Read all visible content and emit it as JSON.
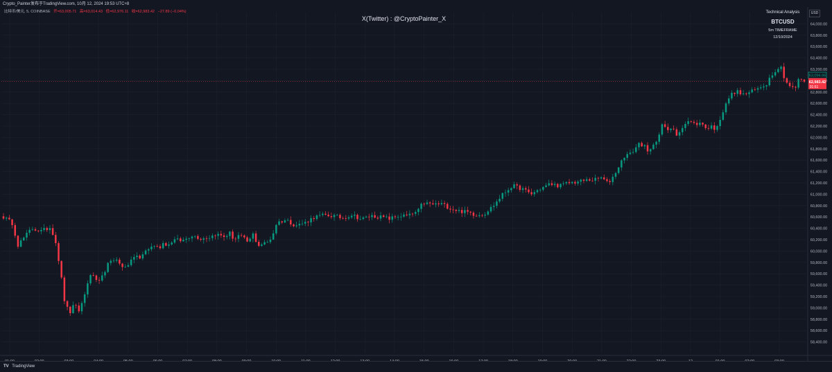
{
  "topbar": {
    "text": "Crypto_Painter发布于TradingView.com, 10月 12, 2024 19:53 UTC+8"
  },
  "legend": {
    "symbol": "比特币/美元, 5, COINBASE",
    "open": "开=63,005.71",
    "high": "高=63,014.43",
    "low": "低=62,976.11",
    "close": "收=62,983.42",
    "change": "−27.89 (−0.04%)"
  },
  "watermark": "X(Twitter) : @CryptoPainter_X",
  "info": {
    "line1": "Technical Analysis",
    "line2": "BTCUSD",
    "line3": "5m TIMEFRAME",
    "line4": "12/10/2024"
  },
  "currency": "USD",
  "footer": {
    "logo": "TV",
    "brand": "TradingView"
  },
  "colors": {
    "up": "#089981",
    "down": "#f23645",
    "background": "#131722",
    "grid": "#1e222d",
    "text": "#b2b5be"
  },
  "chart_data": {
    "type": "candlestick",
    "title": "",
    "symbol": "BTCUSD",
    "timeframe": "5m",
    "ylim": [
      58200,
      64200
    ],
    "yticks": [
      "58,400.00",
      "58,600.00",
      "58,800.00",
      "59,000.00",
      "59,200.00",
      "59,400.00",
      "59,600.00",
      "59,800.00",
      "60,000.00",
      "60,200.00",
      "60,400.00",
      "60,600.00",
      "60,800.00",
      "61,000.00",
      "61,200.00",
      "61,400.00",
      "61,600.00",
      "61,800.00",
      "62,000.00",
      "62,200.00",
      "62,400.00",
      "62,600.00",
      "62,800.00",
      "63,000.00",
      "63,200.00",
      "63,400.00",
      "63,600.00",
      "63,800.00",
      "64,000.00"
    ],
    "xticks": [
      "01:00",
      "02:00",
      "03:00",
      "04:00",
      "05:00",
      "06:00",
      "07:00",
      "08:00",
      "09:00",
      "10:00",
      "11:00",
      "12:00",
      "13:00",
      "14:00",
      "15:00",
      "16:00",
      "17:00",
      "18:00",
      "19:00",
      "20:00",
      "21:00",
      "22:00",
      "23:00",
      "12",
      "01:00",
      "02:00",
      "03:00"
    ],
    "price_line": {
      "label": "62,983.42",
      "sub": "01:51",
      "value": 62983.42
    },
    "open_line": {
      "label": "63,094.66",
      "value": 63094.66
    },
    "path": [
      [
        0,
        60600
      ],
      [
        2,
        60480
      ],
      [
        3,
        60100
      ],
      [
        6,
        60400
      ],
      [
        8,
        60350
      ],
      [
        10,
        60420
      ],
      [
        11,
        60200
      ],
      [
        12,
        59700
      ],
      [
        13,
        59100
      ],
      [
        14,
        58900
      ],
      [
        15,
        59050
      ],
      [
        16,
        58950
      ],
      [
        17,
        59150
      ],
      [
        18,
        59500
      ],
      [
        19,
        59600
      ],
      [
        20,
        59400
      ],
      [
        21,
        59550
      ],
      [
        22,
        59750
      ],
      [
        24,
        59880
      ],
      [
        25,
        59700
      ],
      [
        27,
        59800
      ],
      [
        28,
        59950
      ],
      [
        29,
        59850
      ],
      [
        30,
        60000
      ],
      [
        32,
        60100
      ],
      [
        33,
        60050
      ],
      [
        34,
        60150
      ],
      [
        35,
        60100
      ],
      [
        36,
        60200
      ],
      [
        38,
        60180
      ],
      [
        40,
        60280
      ],
      [
        42,
        60220
      ],
      [
        44,
        60250
      ],
      [
        45,
        60300
      ],
      [
        47,
        60250
      ],
      [
        48,
        60320
      ],
      [
        49,
        60200
      ],
      [
        50,
        60280
      ],
      [
        52,
        60150
      ],
      [
        53,
        60300
      ],
      [
        54,
        60100
      ],
      [
        56,
        60150
      ],
      [
        57,
        60250
      ],
      [
        58,
        60500
      ],
      [
        60,
        60550
      ],
      [
        62,
        60450
      ],
      [
        64,
        60500
      ],
      [
        66,
        60600
      ],
      [
        68,
        60630
      ],
      [
        70,
        60620
      ],
      [
        72,
        60580
      ],
      [
        74,
        60640
      ],
      [
        76,
        60560
      ],
      [
        78,
        60620
      ],
      [
        80,
        60600
      ],
      [
        82,
        60570
      ],
      [
        84,
        60620
      ],
      [
        86,
        60620
      ],
      [
        88,
        60700
      ],
      [
        89,
        60850
      ],
      [
        91,
        60820
      ],
      [
        93,
        60830
      ],
      [
        95,
        60750
      ],
      [
        97,
        60700
      ],
      [
        99,
        60680
      ],
      [
        100,
        60640
      ],
      [
        102,
        60650
      ],
      [
        104,
        60800
      ],
      [
        106,
        61000
      ],
      [
        108,
        61150
      ],
      [
        110,
        61100
      ],
      [
        112,
        61000
      ],
      [
        114,
        61100
      ],
      [
        116,
        61180
      ],
      [
        118,
        61150
      ],
      [
        120,
        61200
      ],
      [
        122,
        61220
      ],
      [
        124,
        61250
      ],
      [
        126,
        61260
      ],
      [
        127,
        61300
      ],
      [
        128,
        61200
      ],
      [
        129,
        61250
      ],
      [
        130,
        61400
      ],
      [
        131,
        61550
      ],
      [
        132,
        61700
      ],
      [
        133,
        61700
      ],
      [
        134,
        61800
      ],
      [
        135,
        61900
      ],
      [
        136,
        61850
      ],
      [
        137,
        61700
      ],
      [
        138,
        61900
      ],
      [
        139,
        62000
      ],
      [
        140,
        62250
      ],
      [
        141,
        62100
      ],
      [
        142,
        62200
      ],
      [
        143,
        62050
      ],
      [
        144,
        62150
      ],
      [
        145,
        62250
      ],
      [
        146,
        62300
      ],
      [
        147,
        62200
      ],
      [
        148,
        62300
      ],
      [
        149,
        62150
      ],
      [
        150,
        62200
      ],
      [
        151,
        62150
      ],
      [
        152,
        62300
      ],
      [
        153,
        62500
      ],
      [
        154,
        62700
      ],
      [
        155,
        62800
      ],
      [
        156,
        62800
      ],
      [
        157,
        62750
      ],
      [
        158,
        62780
      ],
      [
        160,
        62850
      ],
      [
        162,
        62950
      ],
      [
        163,
        63100
      ],
      [
        164,
        63200
      ],
      [
        165,
        63250
      ],
      [
        166,
        63000
      ],
      [
        167,
        62900
      ],
      [
        168,
        62850
      ],
      [
        169,
        63050
      ],
      [
        170,
        62983
      ]
    ]
  }
}
